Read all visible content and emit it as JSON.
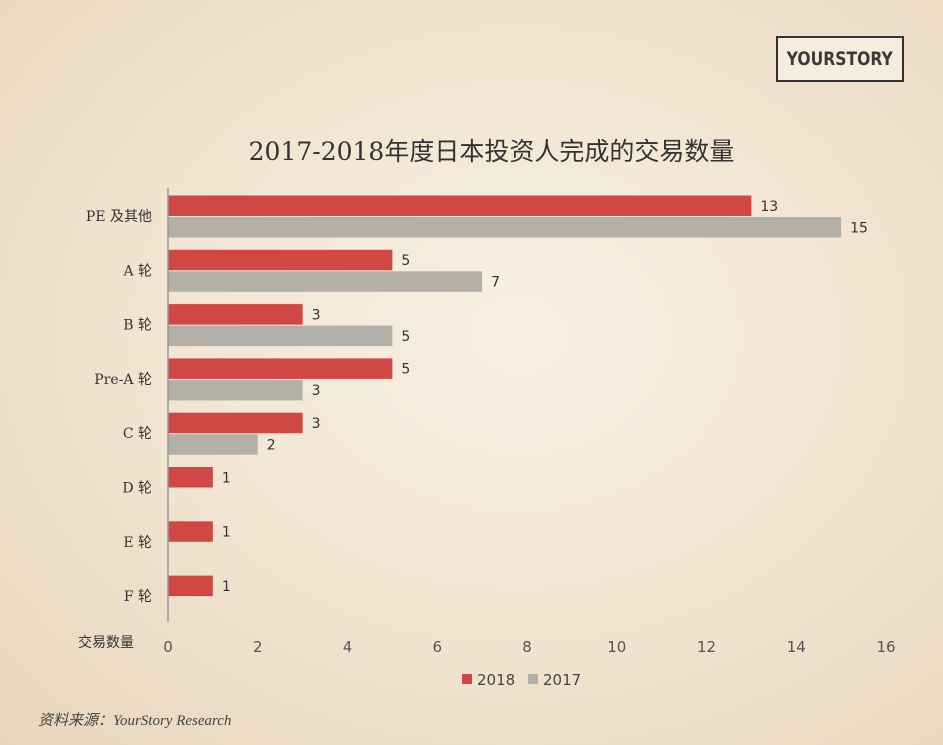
{
  "brand": {
    "logo_text": "YOURSTORY"
  },
  "source_text": "资料来源：YourStory Research",
  "chart_data": {
    "type": "bar",
    "orientation": "horizontal",
    "title": "2017-2018年度日本投资人完成的交易数量",
    "xlabel": "交易数量",
    "ylabel": "",
    "categories": [
      "PE 及其他",
      "A 轮",
      "B 轮",
      "Pre-A 轮",
      "C 轮",
      "D 轮",
      "E 轮",
      "F 轮"
    ],
    "series": [
      {
        "name": "2018",
        "color": "#d04744",
        "values": [
          13,
          5,
          3,
          5,
          3,
          1,
          1,
          1
        ]
      },
      {
        "name": "2017",
        "color": "#b3afa9",
        "values": [
          15,
          7,
          5,
          3,
          2,
          null,
          null,
          null
        ]
      }
    ],
    "xlim": [
      0,
      16
    ],
    "xticks": [
      0,
      2,
      4,
      6,
      8,
      10,
      12,
      14,
      16
    ],
    "grid": false,
    "legend": "bottom-center",
    "data_labels": true
  }
}
